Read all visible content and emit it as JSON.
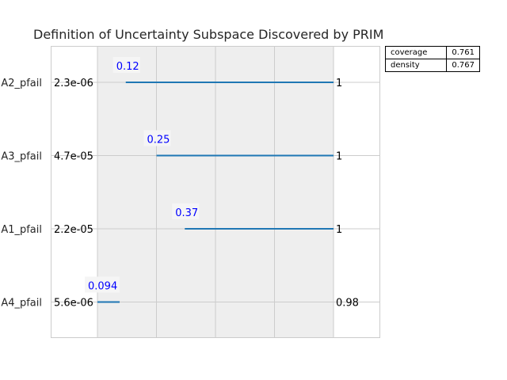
{
  "chart_data": {
    "type": "range",
    "title": "Definition of Uncertainty Subspace Discovered by PRIM",
    "parameters": [
      "A2_pfail",
      "A3_pfail",
      "A1_pfail",
      "A4_pfail"
    ],
    "lower_norm": [
      0.12,
      0.25,
      0.37,
      0
    ],
    "upper_norm": [
      1,
      1,
      1,
      0.094
    ],
    "lower_highlight": [
      "0.12",
      "0.25",
      "0.37",
      "0.094"
    ],
    "min_labels": [
      "2.3e-06",
      "4.7e-05",
      "2.2e-05",
      "5.6e-06"
    ],
    "max_labels": [
      "1",
      "1",
      "1",
      "0.98"
    ],
    "xlim": [
      0,
      1
    ],
    "grid": true,
    "colors": {
      "bar": "#1f77b4",
      "highlight": "#0000ff",
      "shade": "#eeeeee",
      "grid": "#cccccc"
    }
  },
  "stats_table": [
    {
      "label": "coverage",
      "value": "0.761"
    },
    {
      "label": "density",
      "value": "0.767"
    }
  ]
}
